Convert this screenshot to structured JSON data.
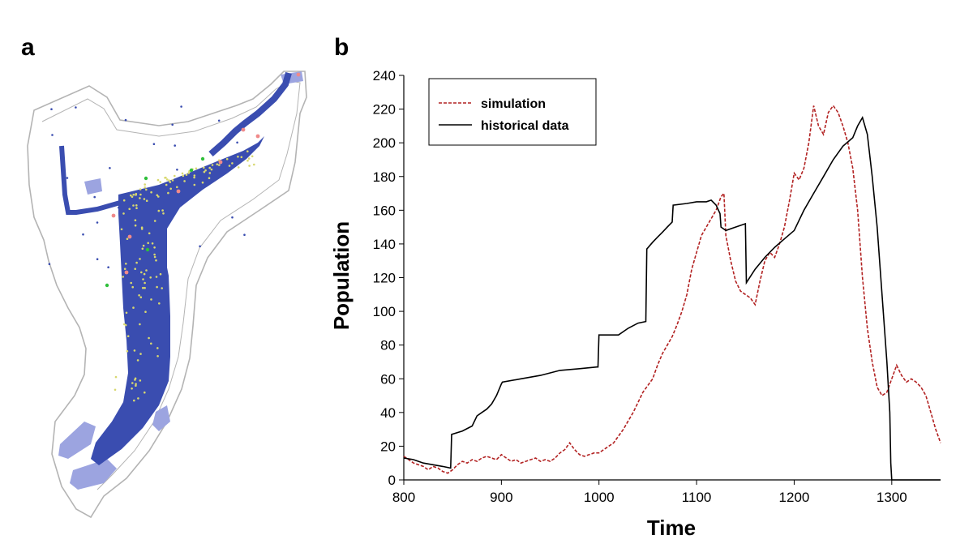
{
  "panels": {
    "a": "a",
    "b": "b"
  },
  "colors": {
    "map_outline": "#b4b4b4",
    "settlement": "#3a4db0",
    "fields": "#9ca4e0",
    "site_green": "#2fbf3a",
    "site_red": "#f08a8a",
    "site_yellow": "#d8d870"
  },
  "chart_data": {
    "type": "line",
    "xlabel": "Time",
    "ylabel": "Population",
    "xlim": [
      800,
      1350
    ],
    "ylim": [
      0,
      240
    ],
    "xticks": [
      800,
      900,
      1000,
      1100,
      1200,
      1300
    ],
    "yticks": [
      0,
      20,
      40,
      60,
      80,
      100,
      120,
      140,
      160,
      180,
      200,
      220,
      240
    ],
    "grid": false,
    "legend_position": "top-left",
    "series": [
      {
        "name": "simulation",
        "color": "#b22222",
        "dash": "dashed",
        "x": [
          800,
          805,
          810,
          815,
          820,
          825,
          830,
          835,
          840,
          845,
          850,
          855,
          860,
          865,
          870,
          875,
          880,
          885,
          890,
          895,
          900,
          905,
          910,
          915,
          920,
          925,
          930,
          935,
          940,
          945,
          950,
          955,
          960,
          965,
          970,
          975,
          980,
          985,
          990,
          995,
          1000,
          1005,
          1010,
          1015,
          1020,
          1025,
          1030,
          1035,
          1040,
          1045,
          1050,
          1055,
          1060,
          1065,
          1070,
          1075,
          1080,
          1085,
          1090,
          1095,
          1100,
          1105,
          1110,
          1115,
          1120,
          1125,
          1128,
          1130,
          1135,
          1140,
          1145,
          1150,
          1155,
          1160,
          1165,
          1170,
          1175,
          1180,
          1185,
          1190,
          1195,
          1200,
          1205,
          1210,
          1215,
          1220,
          1225,
          1230,
          1235,
          1240,
          1245,
          1250,
          1255,
          1260,
          1265,
          1270,
          1275,
          1280,
          1285,
          1290,
          1295,
          1300,
          1305,
          1310,
          1315,
          1320,
          1325,
          1330,
          1335,
          1340,
          1345,
          1350
        ],
        "values": [
          14,
          12,
          10,
          9,
          8,
          6,
          8,
          7,
          5,
          4,
          6,
          9,
          11,
          10,
          12,
          11,
          13,
          14,
          13,
          12,
          15,
          13,
          11,
          12,
          10,
          11,
          12,
          13,
          11,
          12,
          11,
          13,
          16,
          18,
          22,
          18,
          15,
          14,
          15,
          16,
          16,
          18,
          20,
          22,
          26,
          30,
          35,
          40,
          46,
          52,
          56,
          60,
          68,
          75,
          80,
          85,
          92,
          100,
          110,
          125,
          135,
          145,
          150,
          155,
          160,
          168,
          170,
          145,
          130,
          118,
          112,
          110,
          108,
          104,
          118,
          130,
          135,
          132,
          140,
          150,
          165,
          182,
          178,
          185,
          200,
          222,
          210,
          205,
          218,
          222,
          218,
          210,
          200,
          185,
          160,
          120,
          90,
          70,
          55,
          50,
          52,
          60,
          68,
          62,
          58,
          60,
          58,
          55,
          50,
          40,
          30,
          22
        ]
      },
      {
        "name": "historical data",
        "color": "#000000",
        "dash": "solid",
        "x": [
          800,
          810,
          820,
          830,
          840,
          848,
          849,
          860,
          870,
          875,
          880,
          885,
          890,
          895,
          900,
          901,
          920,
          940,
          960,
          980,
          998,
          999,
          1000,
          1020,
          1030,
          1040,
          1048,
          1049,
          1055,
          1060,
          1065,
          1070,
          1075,
          1076,
          1090,
          1100,
          1110,
          1115,
          1120,
          1124,
          1125,
          1130,
          1140,
          1150,
          1151,
          1160,
          1170,
          1180,
          1190,
          1200,
          1210,
          1220,
          1230,
          1240,
          1250,
          1260,
          1265,
          1270,
          1275,
          1280,
          1285,
          1290,
          1295,
          1298,
          1299,
          1300,
          1320,
          1350
        ],
        "values": [
          13,
          12,
          10,
          9,
          8,
          7,
          27,
          29,
          32,
          38,
          40,
          42,
          45,
          50,
          57,
          58,
          60,
          62,
          65,
          66,
          67,
          67,
          86,
          86,
          90,
          93,
          94,
          137,
          141,
          144,
          147,
          150,
          153,
          163,
          164,
          165,
          165,
          166,
          163,
          158,
          150,
          148,
          150,
          152,
          117,
          125,
          132,
          138,
          143,
          148,
          160,
          170,
          180,
          190,
          198,
          203,
          210,
          215,
          205,
          180,
          150,
          110,
          70,
          40,
          10,
          0,
          0,
          0
        ]
      }
    ]
  }
}
